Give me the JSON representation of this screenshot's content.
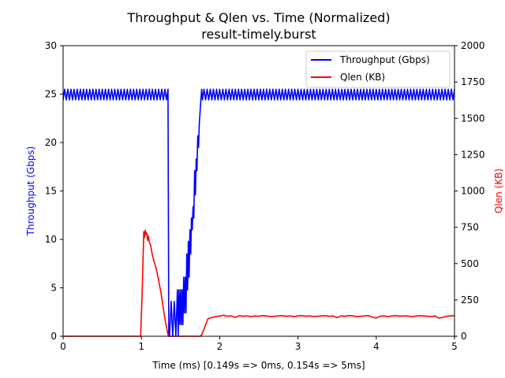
{
  "chart_data": {
    "type": "line",
    "title": "Throughput & Qlen vs. Time (Normalized)",
    "subtitle": "result-timely.burst",
    "xlabel": "Time (ms) [0.149s => 0ms, 0.154s => 5ms]",
    "xlim": [
      0,
      5
    ],
    "x_ticks": [
      "0",
      "1",
      "2",
      "3",
      "4",
      "5"
    ],
    "y_left": {
      "label": "Throughput (Gbps)",
      "color": "#0000ff",
      "lim": [
        0,
        30
      ],
      "ticks": [
        "0",
        "5",
        "10",
        "15",
        "20",
        "25",
        "30"
      ]
    },
    "y_right": {
      "label": "Qlen (KB)",
      "color": "#ff0000",
      "lim": [
        0,
        2000
      ],
      "ticks": [
        "0",
        "250",
        "500",
        "750",
        "1000",
        "1250",
        "1500",
        "1750",
        "2000"
      ]
    },
    "legend": {
      "placement": "upper-right",
      "entries": [
        "Throughput (Gbps)",
        "Qlen (KB)"
      ]
    },
    "grid": false,
    "series": [
      {
        "name": "Throughput (Gbps)",
        "axis": "left",
        "color": "#0000ff",
        "oscillation": {
          "x_start": 0,
          "x_end": 1.34,
          "low": 24.4,
          "high": 25.5,
          "period": 0.04
        },
        "x": [
          1.34,
          1.35,
          1.36,
          1.38,
          1.4,
          1.42,
          1.44,
          1.46,
          1.47,
          1.48,
          1.49,
          1.5,
          1.51,
          1.52,
          1.53,
          1.54,
          1.55,
          1.56,
          1.57,
          1.58,
          1.59,
          1.6,
          1.61,
          1.62,
          1.63,
          1.64,
          1.65,
          1.66,
          1.67,
          1.68,
          1.69,
          1.7,
          1.71,
          1.72,
          1.73,
          1.74,
          1.75,
          1.76,
          1.77,
          1.78
        ],
        "values": [
          25.0,
          0.0,
          0.0,
          3.6,
          0.0,
          3.6,
          0.0,
          4.8,
          0.0,
          4.8,
          1.2,
          4.8,
          1.2,
          4.8,
          1.2,
          6.1,
          2.4,
          6.1,
          2.4,
          8.5,
          4.8,
          9.8,
          6.1,
          11.0,
          8.5,
          12.2,
          11.0,
          13.4,
          12.2,
          17.1,
          14.6,
          18.3,
          17.1,
          20.7,
          19.5,
          22.0,
          23.2,
          24.4,
          25.5,
          24.4
        ],
        "oscillation_after": {
          "x_start": 1.78,
          "x_end": 5.0,
          "low": 24.4,
          "high": 25.5,
          "period": 0.04
        }
      },
      {
        "name": "Qlen (KB)",
        "axis": "right",
        "color": "#ff0000",
        "x": [
          0.0,
          0.99,
          1.01,
          1.03,
          1.04,
          1.05,
          1.06,
          1.07,
          1.08,
          1.09,
          1.1,
          1.12,
          1.14,
          1.16,
          1.18,
          1.2,
          1.25,
          1.3,
          1.34,
          1.35,
          1.75,
          1.77,
          1.8,
          1.85,
          1.9,
          1.95,
          2.0,
          2.05,
          2.1,
          2.15,
          2.2,
          2.25,
          2.3,
          2.35,
          2.4,
          2.45,
          2.5,
          2.55,
          2.6,
          2.65,
          2.7,
          2.75,
          2.8,
          2.85,
          2.9,
          2.95,
          3.0,
          3.05,
          3.1,
          3.15,
          3.2,
          3.25,
          3.3,
          3.35,
          3.4,
          3.45,
          3.5,
          3.55,
          3.6,
          3.65,
          3.7,
          3.75,
          3.8,
          3.85,
          3.9,
          3.95,
          4.0,
          4.05,
          4.1,
          4.15,
          4.2,
          4.25,
          4.3,
          4.35,
          4.4,
          4.45,
          4.5,
          4.55,
          4.6,
          4.65,
          4.7,
          4.75,
          4.8,
          4.85,
          4.9,
          4.95,
          5.0
        ],
        "values": [
          0,
          0,
          300,
          720,
          680,
          730,
          700,
          710,
          660,
          690,
          650,
          620,
          560,
          520,
          480,
          440,
          300,
          120,
          10,
          0,
          0,
          10,
          50,
          120,
          130,
          135,
          140,
          145,
          138,
          140,
          130,
          142,
          138,
          140,
          135,
          140,
          138,
          142,
          140,
          135,
          138,
          140,
          142,
          138,
          140,
          136,
          140,
          142,
          138,
          140,
          135,
          138,
          140,
          142,
          138,
          140,
          128,
          140,
          138,
          142,
          140,
          135,
          138,
          140,
          142,
          132,
          125,
          138,
          140,
          135,
          140,
          142,
          138,
          140,
          140,
          135,
          138,
          142,
          140,
          138,
          135,
          140,
          125,
          130,
          138,
          140,
          142
        ]
      }
    ]
  }
}
